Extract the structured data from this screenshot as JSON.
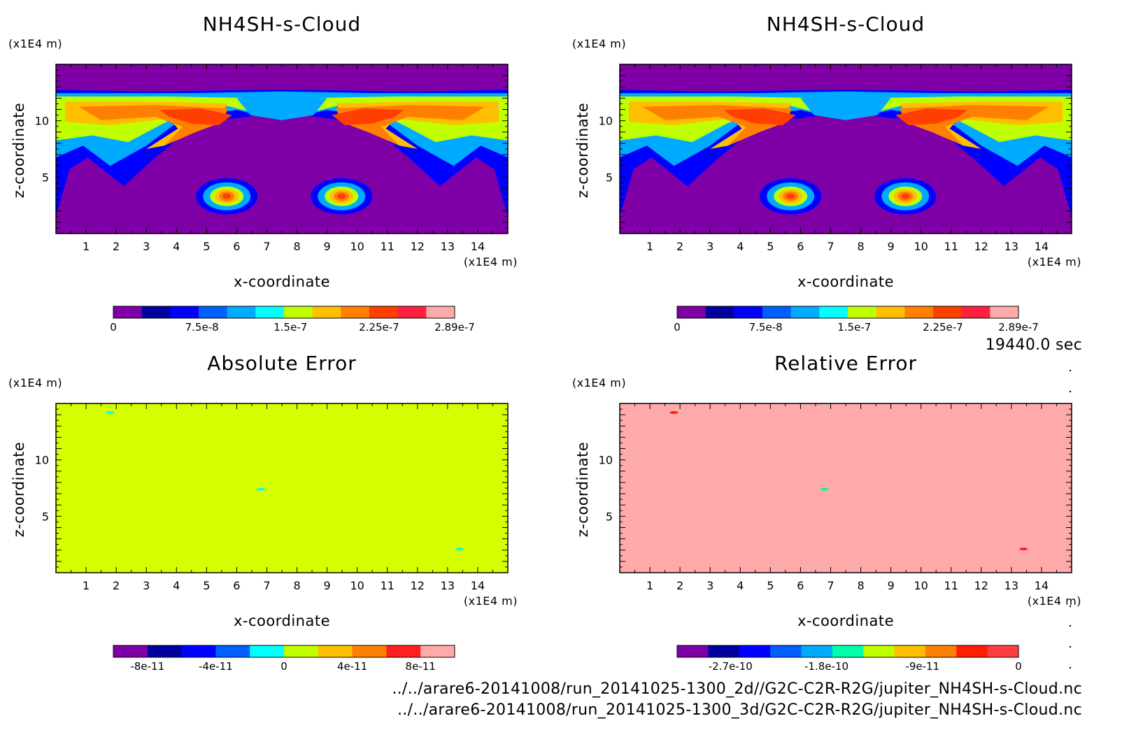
{
  "footer": {
    "time_label": "19440.0 sec",
    "file_1": "../../arare6-20141008/run_20141025-1300_2d//G2C-C2R-R2G/jupiter_NH4SH-s-Cloud.nc",
    "file_2": "../../arare6-20141008/run_20141025-1300_3d/G2C-C2R-R2G/jupiter_NH4SH-s-Cloud.nc"
  },
  "colors": {
    "levels": [
      "#7f00a6",
      "#00009f",
      "#0000ff",
      "#005fff",
      "#00aaff",
      "#00ffff",
      "#bfff00",
      "#ffbf00",
      "#ff7f00",
      "#ff3f00",
      "#ff1f3f",
      "#ffaaaa"
    ]
  },
  "chart_data": [
    {
      "type": "heatmap",
      "title": "NH4SH-s-Cloud",
      "xlabel": "x-coordinate",
      "ylabel": "z-coordinate",
      "x_unit": "(x1E4 m)",
      "y_unit": "(x1E4 m)",
      "xlim": [
        0,
        15
      ],
      "ylim": [
        0,
        15
      ],
      "x_ticks": [
        "1",
        "2",
        "3",
        "4",
        "5",
        "6",
        "7",
        "8",
        "9",
        "10",
        "11",
        "12",
        "13",
        "14"
      ],
      "y_ticks": [
        "5",
        "10"
      ],
      "colorbar": {
        "min": 0,
        "max": 2.89e-07,
        "tick_labels": [
          "0",
          "7.5e-8",
          "1.5e-7",
          "2.25e-7",
          "2.89e-7"
        ],
        "colors": [
          "#7f00a6",
          "#00009f",
          "#0000ff",
          "#005fff",
          "#00aaff",
          "#00ffff",
          "#bfff00",
          "#ffbf00",
          "#ff7f00",
          "#ff3f00",
          "#ff1f3f",
          "#ffaaaa"
        ]
      },
      "field": "cloud"
    },
    {
      "type": "heatmap",
      "title": "NH4SH-s-Cloud",
      "xlabel": "x-coordinate",
      "ylabel": "z-coordinate",
      "x_unit": "(x1E4 m)",
      "y_unit": "(x1E4 m)",
      "xlim": [
        0,
        15
      ],
      "ylim": [
        0,
        15
      ],
      "x_ticks": [
        "1",
        "2",
        "3",
        "4",
        "5",
        "6",
        "7",
        "8",
        "9",
        "10",
        "11",
        "12",
        "13",
        "14"
      ],
      "y_ticks": [
        "5",
        "10"
      ],
      "colorbar": {
        "min": 0,
        "max": 2.89e-07,
        "tick_labels": [
          "0",
          "7.5e-8",
          "1.5e-7",
          "2.25e-7",
          "2.89e-7"
        ],
        "colors": [
          "#7f00a6",
          "#00009f",
          "#0000ff",
          "#005fff",
          "#00aaff",
          "#00ffff",
          "#bfff00",
          "#ffbf00",
          "#ff7f00",
          "#ff3f00",
          "#ff1f3f",
          "#ffaaaa"
        ]
      },
      "field": "cloud"
    },
    {
      "type": "heatmap",
      "title": "Absolute Error",
      "xlabel": "x-coordinate",
      "ylabel": "z-coordinate",
      "x_unit": "(x1E4 m)",
      "y_unit": "(x1E4 m)",
      "xlim": [
        0,
        15
      ],
      "ylim": [
        0,
        15
      ],
      "x_ticks": [
        "1",
        "2",
        "3",
        "4",
        "5",
        "6",
        "7",
        "8",
        "9",
        "10",
        "11",
        "12",
        "13",
        "14"
      ],
      "y_ticks": [
        "5",
        "10"
      ],
      "colorbar": {
        "min": -1e-10,
        "max": 1e-10,
        "tick_labels": [
          "-8e-11",
          "-4e-11",
          "0",
          "4e-11",
          "8e-11"
        ],
        "colors": [
          "#7f00a6",
          "#00009f",
          "#0000ff",
          "#005fff",
          "#00ffff",
          "#bfff00",
          "#ffbf00",
          "#ff7f00",
          "#ff1f1f",
          "#ffaaaa"
        ]
      },
      "field": "uniform",
      "background_color": "#d4ff00",
      "spots": [
        {
          "x": 1.8,
          "z": 14.2,
          "color": "#00ffff"
        },
        {
          "x": 6.8,
          "z": 7.4,
          "color": "#00ffff"
        },
        {
          "x": 13.4,
          "z": 2.1,
          "color": "#00ffff"
        }
      ]
    },
    {
      "type": "heatmap",
      "title": "Relative Error",
      "xlabel": "x-coordinate",
      "ylabel": "z-coordinate",
      "x_unit": "(x1E4 m)",
      "y_unit": "(x1E4 m)",
      "xlim": [
        0,
        15
      ],
      "ylim": [
        0,
        15
      ],
      "x_ticks": [
        "1",
        "2",
        "3",
        "4",
        "5",
        "6",
        "7",
        "8",
        "9",
        "10",
        "11",
        "12",
        "13",
        "14"
      ],
      "y_ticks": [
        "5",
        "10"
      ],
      "colorbar": {
        "min": -3.2e-10,
        "max": 0,
        "tick_labels": [
          "-2.7e-10",
          "-1.8e-10",
          "-9e-11",
          "0"
        ],
        "colors": [
          "#7f00a6",
          "#00009f",
          "#0000ff",
          "#005fff",
          "#00aaff",
          "#00ffaa",
          "#bfff00",
          "#ffbf00",
          "#ff7f00",
          "#ff1f00",
          "#ff3f3f"
        ]
      },
      "field": "uniform",
      "background_color": "#ffaaaa",
      "spots": [
        {
          "x": 1.8,
          "z": 14.2,
          "color": "#ff1f1f"
        },
        {
          "x": 6.8,
          "z": 7.4,
          "color": "#00ff80"
        },
        {
          "x": 13.4,
          "z": 2.1,
          "color": "#ff1f1f"
        }
      ]
    }
  ]
}
